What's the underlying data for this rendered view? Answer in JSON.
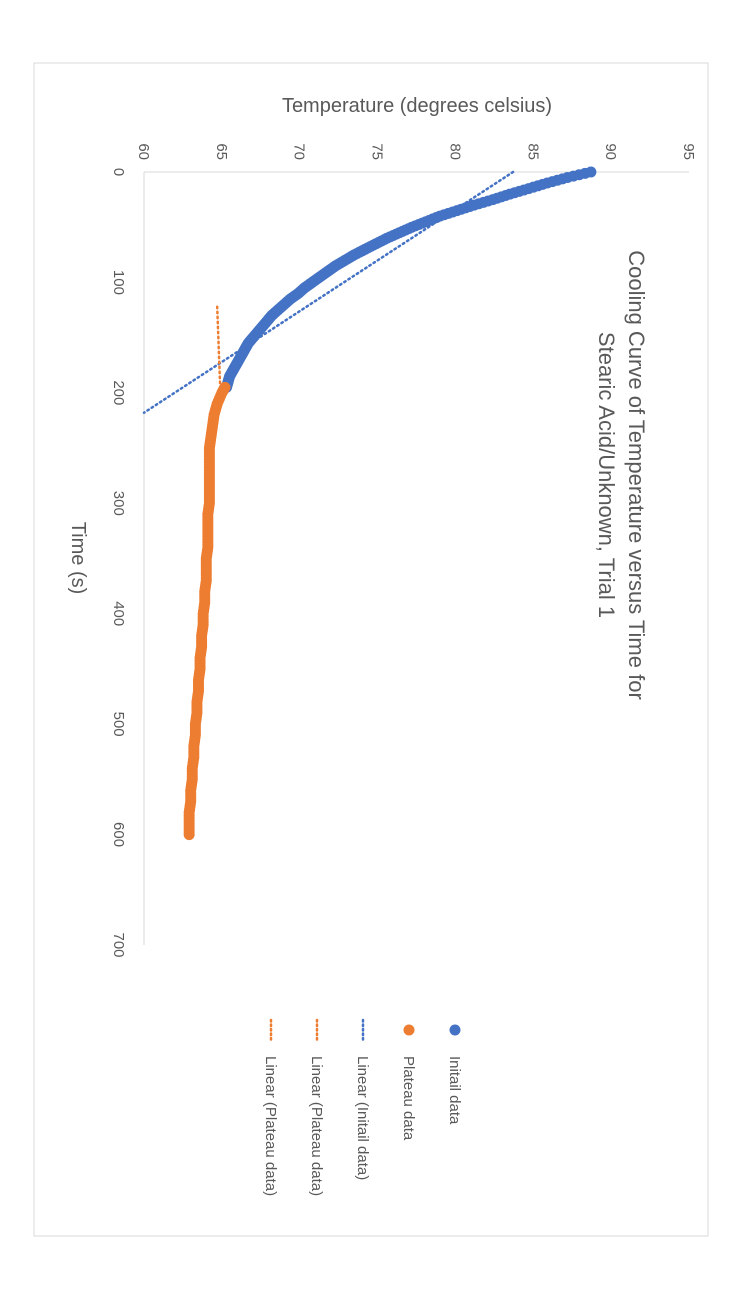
{
  "chart_data": {
    "type": "scatter",
    "title_line1": "Cooling Curve of Temperature versus Time for",
    "title_line2": "Stearic Acid/Unknown, Trial 1",
    "xlabel": "Time (s)",
    "ylabel": "Temperature (degrees celsius)",
    "xlim": [
      0,
      700
    ],
    "ylim": [
      60,
      95
    ],
    "x_ticks": [
      "0",
      "100",
      "200",
      "300",
      "400",
      "500",
      "600",
      "700"
    ],
    "y_ticks": [
      "60",
      "65",
      "70",
      "75",
      "80",
      "85",
      "90",
      "95"
    ],
    "grid": false,
    "legend_position": "right",
    "rotated": "chart rendered rotated 90 degrees clockwise",
    "legend": [
      {
        "label": "Initail data",
        "kind": "marker",
        "color": "#4472C4"
      },
      {
        "label": "Plateau data",
        "kind": "marker",
        "color": "#ED7D31"
      },
      {
        "label": "Linear (Initail data)",
        "kind": "dotted-line",
        "color": "#4472C4"
      },
      {
        "label": "Linear (Plateau data)",
        "kind": "dotted-line",
        "color": "#ED7D31"
      },
      {
        "label": "Linear (Plateau data)",
        "kind": "dotted-line",
        "color": "#ED7D31"
      }
    ],
    "series": [
      {
        "name": "Initail data",
        "color": "#4472C4",
        "x": [
          0,
          5,
          10,
          15,
          20,
          25,
          30,
          35,
          40,
          45,
          50,
          55,
          60,
          65,
          70,
          75,
          80,
          85,
          90,
          95,
          100,
          105,
          110,
          115,
          120,
          125,
          130,
          135,
          140,
          145,
          150,
          155,
          160,
          165,
          170,
          175,
          180,
          185,
          190,
          195
        ],
        "y": [
          88.7,
          87.2,
          85.9,
          84.7,
          83.5,
          82.4,
          81.2,
          80.1,
          79.0,
          78.1,
          77.2,
          76.4,
          75.6,
          74.9,
          74.2,
          73.5,
          72.9,
          72.3,
          71.8,
          71.3,
          70.8,
          70.3,
          69.9,
          69.4,
          69.0,
          68.6,
          68.2,
          67.9,
          67.6,
          67.3,
          67.0,
          66.7,
          66.5,
          66.3,
          66.1,
          65.9,
          65.7,
          65.5,
          65.4,
          65.3
        ]
      },
      {
        "name": "Plateau data",
        "color": "#ED7D31",
        "x": [
          195,
          200,
          210,
          220,
          230,
          240,
          250,
          260,
          270,
          280,
          290,
          300,
          310,
          320,
          330,
          340,
          350,
          360,
          370,
          380,
          390,
          400,
          410,
          420,
          430,
          440,
          450,
          460,
          470,
          480,
          490,
          500,
          510,
          520,
          530,
          540,
          550,
          560,
          570,
          580,
          590,
          600
        ],
        "y": [
          65.2,
          65.0,
          64.7,
          64.5,
          64.4,
          64.3,
          64.2,
          64.2,
          64.2,
          64.2,
          64.2,
          64.2,
          64.1,
          64.1,
          64.1,
          64.1,
          64.0,
          64.0,
          64.0,
          63.9,
          63.9,
          63.8,
          63.8,
          63.7,
          63.7,
          63.6,
          63.6,
          63.5,
          63.5,
          63.4,
          63.4,
          63.3,
          63.3,
          63.2,
          63.2,
          63.1,
          63.1,
          63.0,
          63.0,
          62.9,
          62.9,
          62.9
        ]
      }
    ],
    "trendlines": [
      {
        "name": "Linear (Initail data)",
        "color": "#4472C4",
        "x": [
          0,
          218
        ],
        "y": [
          83.7,
          60.0
        ]
      },
      {
        "name": "Linear (Plateau data)",
        "color": "#ED7D31",
        "x": [
          122,
          198
        ],
        "y": [
          64.7,
          64.9
        ]
      }
    ]
  }
}
